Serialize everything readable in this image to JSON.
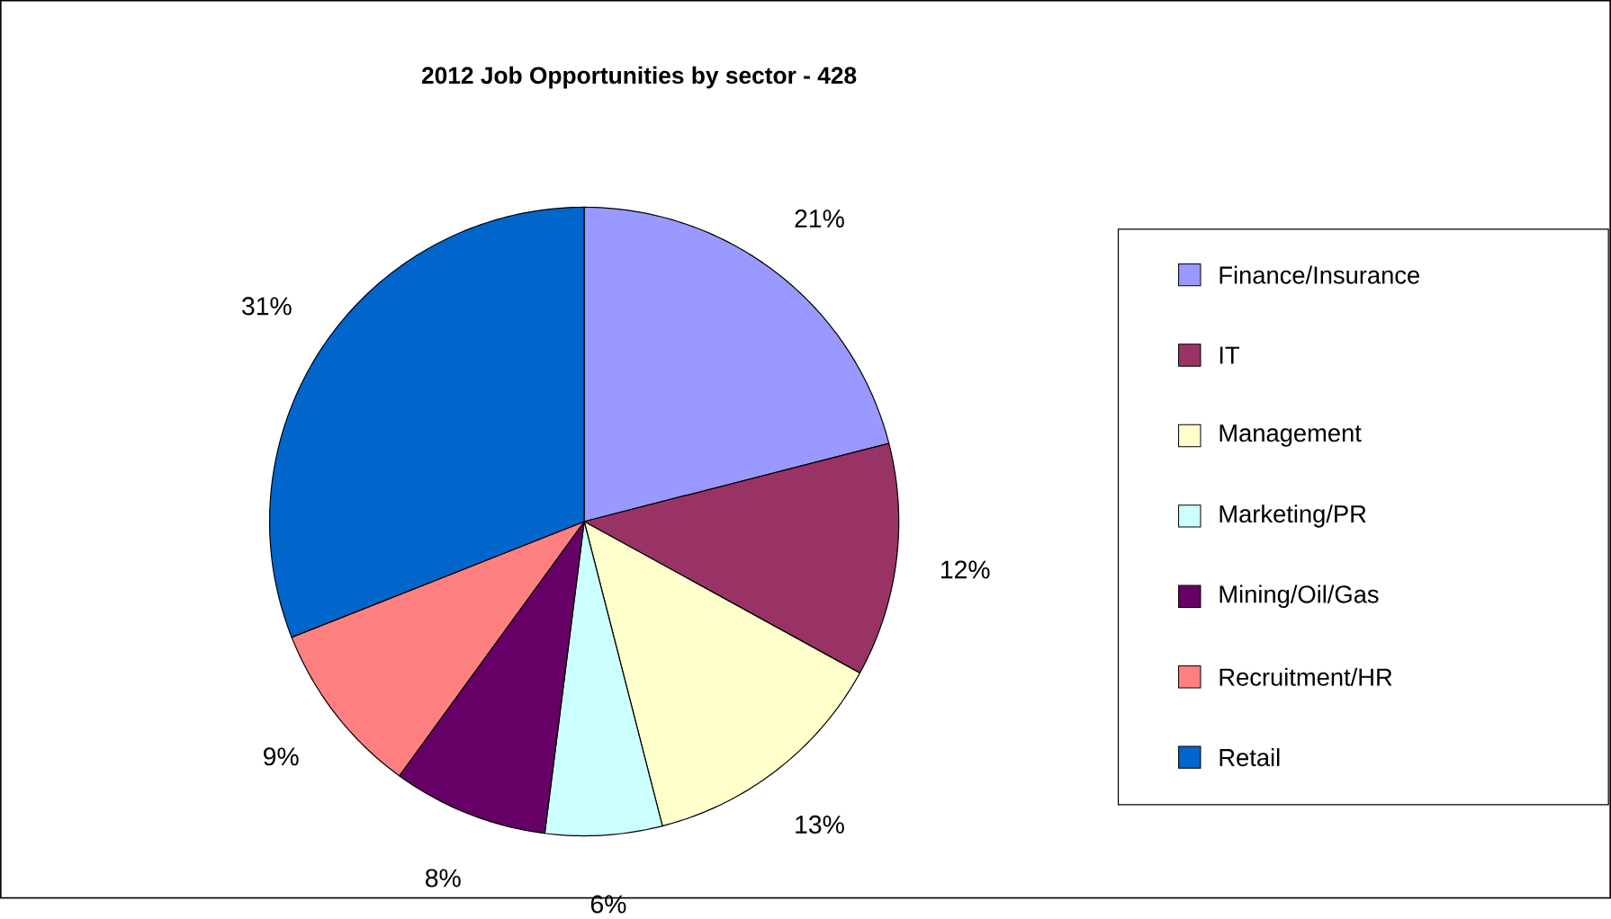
{
  "chart_data": {
    "type": "pie",
    "title": "2012 Job Opportunities by sector - 428",
    "categories": [
      "Finance/Insurance",
      "IT",
      "Management",
      "Marketing/PR",
      "Mining/Oil/Gas",
      "Recruitment/HR",
      "Retail"
    ],
    "values": [
      21,
      12,
      13,
      6,
      8,
      9,
      31
    ],
    "colors": [
      "#9999ff",
      "#993366",
      "#ffffcc",
      "#ccffff",
      "#660066",
      "#ff8080",
      "#0066cc"
    ],
    "value_labels": [
      "21%",
      "12%",
      "13%",
      "6%",
      "8%",
      "9%",
      "31%"
    ],
    "legend": "right"
  }
}
